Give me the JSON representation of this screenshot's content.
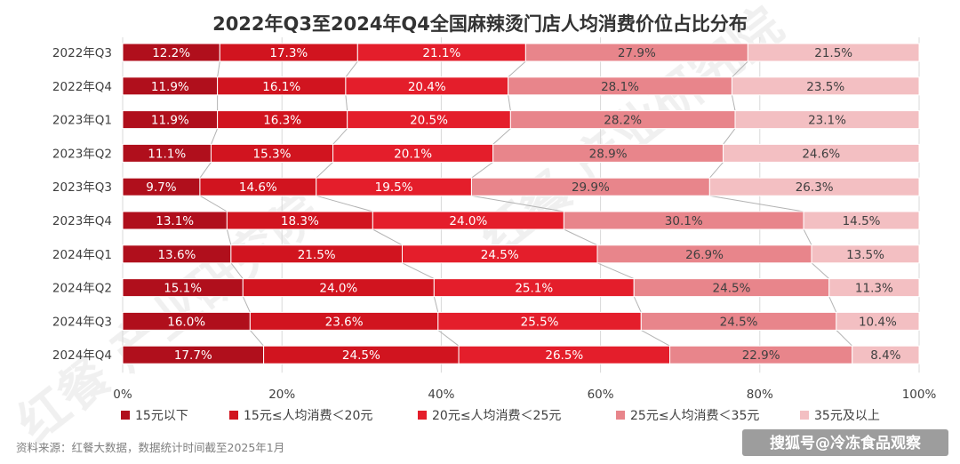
{
  "chart_data": {
    "type": "bar",
    "orientation": "horizontal",
    "stacked": true,
    "title": "2022年Q3至2024年Q4全国麻辣烫门店人均消费价位占比分布",
    "categories": [
      "2022年Q3",
      "2022年Q4",
      "2023年Q1",
      "2023年Q2",
      "2023年Q3",
      "2023年Q4",
      "2024年Q1",
      "2024年Q2",
      "2024年Q3",
      "2024年Q4"
    ],
    "series": [
      {
        "name": "15元以下",
        "color": "#b00f1c",
        "label_color": "#ffffff",
        "values": [
          12.2,
          11.9,
          11.9,
          11.1,
          9.7,
          13.1,
          13.6,
          15.1,
          16.0,
          17.7
        ],
        "labels": [
          "12.2%",
          "11.9%",
          "11.9%",
          "11.1%",
          "9.7%",
          "13.1%",
          "13.6%",
          "15.1%",
          "16.0%",
          "17.7%"
        ]
      },
      {
        "name": "15元≤人均消费＜20元",
        "color": "#d1141f",
        "label_color": "#ffffff",
        "values": [
          17.3,
          16.1,
          16.3,
          15.3,
          14.6,
          18.3,
          21.5,
          24.0,
          23.6,
          24.5
        ],
        "labels": [
          "17.3%",
          "16.1%",
          "16.3%",
          "15.3%",
          "14.6%",
          "18.3%",
          "21.5%",
          "24.0%",
          "23.6%",
          "24.5%"
        ]
      },
      {
        "name": "20元≤人均消费＜25元",
        "color": "#e41e2b",
        "label_color": "#ffffff",
        "values": [
          21.1,
          20.4,
          20.5,
          20.1,
          19.5,
          24.0,
          24.5,
          25.1,
          25.5,
          26.5
        ],
        "labels": [
          "21.1%",
          "20.4%",
          "20.5%",
          "20.1%",
          "19.5%",
          "24.0%",
          "24.5%",
          "25.1%",
          "25.5%",
          "26.5%"
        ]
      },
      {
        "name": "25元≤人均消费＜35元",
        "color": "#e8858b",
        "label_color": "#404040",
        "values": [
          27.9,
          28.1,
          28.2,
          28.9,
          29.9,
          30.1,
          26.9,
          24.5,
          24.5,
          22.9
        ],
        "labels": [
          "27.9%",
          "28.1%",
          "28.2%",
          "28.9%",
          "29.9%",
          "30.1%",
          "26.9%",
          "24.5%",
          "24.5%",
          "22.9%"
        ]
      },
      {
        "name": "35元及以上",
        "color": "#f3bfc2",
        "label_color": "#404040",
        "values": [
          21.5,
          23.5,
          23.1,
          24.6,
          26.3,
          14.5,
          13.5,
          11.3,
          10.4,
          8.4
        ],
        "labels": [
          "21.5%",
          "23.5%",
          "23.1%",
          "24.6%",
          "26.3%",
          "14.5%",
          "13.5%",
          "11.3%",
          "10.4%",
          "8.4%"
        ]
      }
    ],
    "xlim": [
      0,
      100
    ],
    "xticks": [
      "0%",
      "20%",
      "40%",
      "60%",
      "80%",
      "100%"
    ],
    "grid": true,
    "legend_position": "bottom"
  },
  "source_note": "资料来源：红餐大数据，数据统计时间截至2025年1月",
  "footer_watermark": "搜狐号@冷冻食品观察",
  "bg_watermark": "红餐 产业研究院"
}
